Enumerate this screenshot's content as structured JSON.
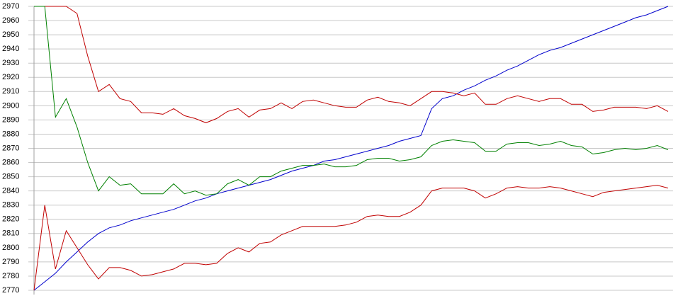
{
  "chart_data": {
    "type": "line",
    "categories": [
      null,
      null,
      null,
      null,
      null,
      null,
      null,
      null,
      null,
      null,
      null,
      null,
      null,
      null,
      null,
      null,
      null,
      null,
      null,
      null,
      null,
      null,
      null,
      null,
      null,
      null,
      null,
      null,
      null,
      null,
      null,
      null,
      null,
      null,
      null,
      null,
      null,
      null,
      null,
      null,
      null,
      null,
      null,
      null,
      null,
      null,
      null,
      null,
      null,
      null,
      null,
      null,
      null,
      null,
      null,
      null,
      null,
      null,
      null,
      null
    ],
    "series": [
      {
        "color": "#0000cc",
        "values": [
          2770,
          2776,
          2782,
          2790,
          2797,
          2804,
          2810,
          2814,
          2816,
          2819,
          2821,
          2823,
          2825,
          2827,
          2830,
          2833,
          2835,
          2838,
          2840,
          2842,
          2844,
          2846,
          2848,
          2851,
          2854,
          2856,
          2858,
          2861,
          2862,
          2864,
          2866,
          2868,
          2870,
          2872,
          2875,
          2877,
          2879,
          2898,
          2905,
          2907,
          2911,
          2914,
          2918,
          2921,
          2925,
          2928,
          2932,
          2936,
          2939,
          2941,
          2944,
          2947,
          2950,
          2953,
          2956,
          2959,
          2962,
          2964,
          2967,
          2970
        ]
      },
      {
        "color": "#c00000",
        "values": [
          2970,
          2970,
          2970,
          2970,
          2965,
          2935,
          2910,
          2915,
          2905,
          2903,
          2895,
          2895,
          2894,
          2898,
          2893,
          2891,
          2888,
          2891,
          2896,
          2898,
          2892,
          2897,
          2898,
          2902,
          2898,
          2903,
          2904,
          2902,
          2900,
          2899,
          2899,
          2904,
          2906,
          2903,
          2902,
          2900,
          2905,
          2910,
          2910,
          2909,
          2907,
          2909,
          2901,
          2901,
          2905,
          2907,
          2905,
          2903,
          2905,
          2905,
          2901,
          2901,
          2896,
          2897,
          2899,
          2899,
          2899,
          2898,
          2900,
          2896
        ]
      },
      {
        "color": "#008000",
        "values": [
          2970,
          2970,
          2892,
          2905,
          2885,
          2860,
          2840,
          2850,
          2844,
          2845,
          2838,
          2838,
          2838,
          2845,
          2838,
          2840,
          2837,
          2838,
          2845,
          2848,
          2844,
          2850,
          2850,
          2854,
          2856,
          2858,
          2858,
          2859,
          2857,
          2857,
          2858,
          2862,
          2863,
          2863,
          2861,
          2862,
          2864,
          2872,
          2875,
          2876,
          2875,
          2874,
          2868,
          2868,
          2873,
          2874,
          2874,
          2872,
          2873,
          2875,
          2872,
          2871,
          2866,
          2867,
          2869,
          2870,
          2869,
          2870,
          2872,
          2869
        ]
      },
      {
        "color": "#c00000",
        "values": [
          2770,
          2830,
          2785,
          2812,
          2800,
          2788,
          2778,
          2786,
          2786,
          2784,
          2780,
          2781,
          2783,
          2785,
          2789,
          2789,
          2788,
          2789,
          2796,
          2800,
          2797,
          2803,
          2804,
          2809,
          2812,
          2815,
          2815,
          2815,
          2815,
          2816,
          2818,
          2822,
          2823,
          2822,
          2822,
          2825,
          2830,
          2840,
          2842,
          2842,
          2842,
          2840,
          2835,
          2838,
          2842,
          2843,
          2842,
          2842,
          2843,
          2842,
          2840,
          2838,
          2836,
          2839,
          2840,
          2841,
          2842,
          2843,
          2844,
          2842
        ]
      }
    ],
    "ylim": [
      2770,
      2970
    ],
    "yticks": [
      2770,
      2780,
      2790,
      2800,
      2810,
      2820,
      2830,
      2840,
      2850,
      2860,
      2870,
      2880,
      2890,
      2900,
      2910,
      2920,
      2930,
      2940,
      2950,
      2960,
      2970
    ],
    "grid": true
  }
}
